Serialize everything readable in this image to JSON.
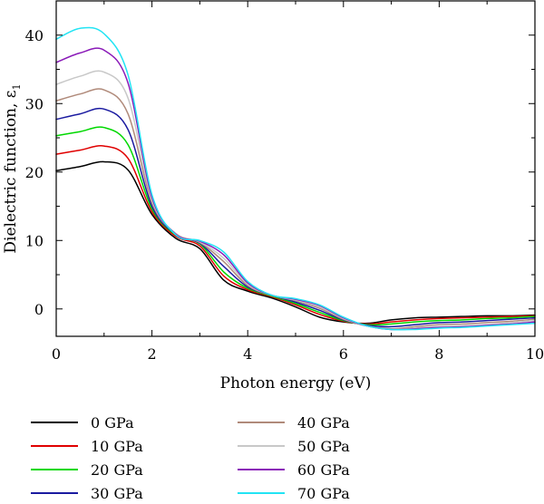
{
  "chart_data": {
    "type": "line",
    "title": "",
    "xlabel": "Photon energy (eV)",
    "ylabel": "Dielectric function, ε",
    "ylabel_subscript": "1",
    "xlim": [
      0,
      10
    ],
    "ylim": [
      -4,
      45
    ],
    "x_ticks": [
      0,
      2,
      4,
      6,
      8,
      10
    ],
    "y_ticks": [
      0,
      10,
      20,
      30,
      40
    ],
    "grid": false,
    "legend_position": "below",
    "x": [
      0,
      0.5,
      1,
      1.5,
      2,
      2.5,
      3,
      3.5,
      4,
      4.5,
      5,
      5.5,
      6,
      6.5,
      7,
      7.5,
      8,
      8.5,
      9,
      9.5,
      10
    ],
    "series": [
      {
        "name": "0 GPa",
        "color": "#000000",
        "values": [
          20.2,
          20.8,
          21.5,
          20.3,
          13.8,
          10.3,
          8.8,
          4.2,
          2.6,
          1.6,
          0.3,
          -1.2,
          -1.9,
          -2.1,
          -1.6,
          -1.3,
          -1.2,
          -1.1,
          -1.0,
          -1.0,
          -0.9
        ]
      },
      {
        "name": "10 GPa",
        "color": "#e00000",
        "values": [
          22.6,
          23.2,
          23.8,
          22.0,
          14.2,
          10.6,
          9.2,
          4.8,
          2.8,
          1.8,
          0.6,
          -0.8,
          -1.8,
          -2.2,
          -1.9,
          -1.6,
          -1.4,
          -1.3,
          -1.2,
          -1.1,
          -1.0
        ]
      },
      {
        "name": "20 GPa",
        "color": "#00d800",
        "values": [
          25.3,
          25.9,
          26.5,
          24.0,
          14.6,
          10.8,
          9.5,
          5.4,
          3.0,
          1.9,
          0.8,
          -0.5,
          -1.7,
          -2.3,
          -2.2,
          -1.9,
          -1.7,
          -1.6,
          -1.4,
          -1.3,
          -1.1
        ]
      },
      {
        "name": "30 GPa",
        "color": "#1a1aa0",
        "values": [
          27.7,
          28.5,
          29.2,
          26.2,
          15.0,
          10.9,
          9.6,
          6.2,
          3.2,
          2.0,
          1.0,
          -0.2,
          -1.6,
          -2.4,
          -2.6,
          -2.3,
          -2.0,
          -1.9,
          -1.7,
          -1.5,
          -1.3
        ]
      },
      {
        "name": "40 GPa",
        "color": "#b08a7a",
        "values": [
          30.4,
          31.4,
          32.0,
          28.5,
          15.5,
          11.0,
          9.7,
          6.9,
          3.4,
          2.0,
          1.2,
          0.1,
          -1.5,
          -2.5,
          -2.9,
          -2.6,
          -2.3,
          -2.2,
          -2.0,
          -1.8,
          -1.5
        ]
      },
      {
        "name": "50 GPa",
        "color": "#c8c8c8",
        "values": [
          32.8,
          34.0,
          34.6,
          30.8,
          15.9,
          11.0,
          9.8,
          7.4,
          3.6,
          2.0,
          1.3,
          0.3,
          -1.4,
          -2.5,
          -3.0,
          -2.8,
          -2.6,
          -2.5,
          -2.3,
          -2.0,
          -1.7
        ]
      },
      {
        "name": "60 GPa",
        "color": "#8a1ab8",
        "values": [
          36.0,
          37.4,
          37.8,
          33.0,
          16.3,
          10.9,
          9.9,
          7.9,
          3.8,
          2.0,
          1.4,
          0.5,
          -1.3,
          -2.5,
          -3.0,
          -2.9,
          -2.7,
          -2.6,
          -2.4,
          -2.2,
          -1.9
        ]
      },
      {
        "name": "70 GPa",
        "color": "#22e4f4",
        "values": [
          39.4,
          41.0,
          40.2,
          34.2,
          16.7,
          10.8,
          10.0,
          8.3,
          4.0,
          2.0,
          1.5,
          0.6,
          -1.2,
          -2.5,
          -3.0,
          -3.0,
          -2.8,
          -2.7,
          -2.5,
          -2.3,
          -2.1
        ]
      }
    ]
  }
}
